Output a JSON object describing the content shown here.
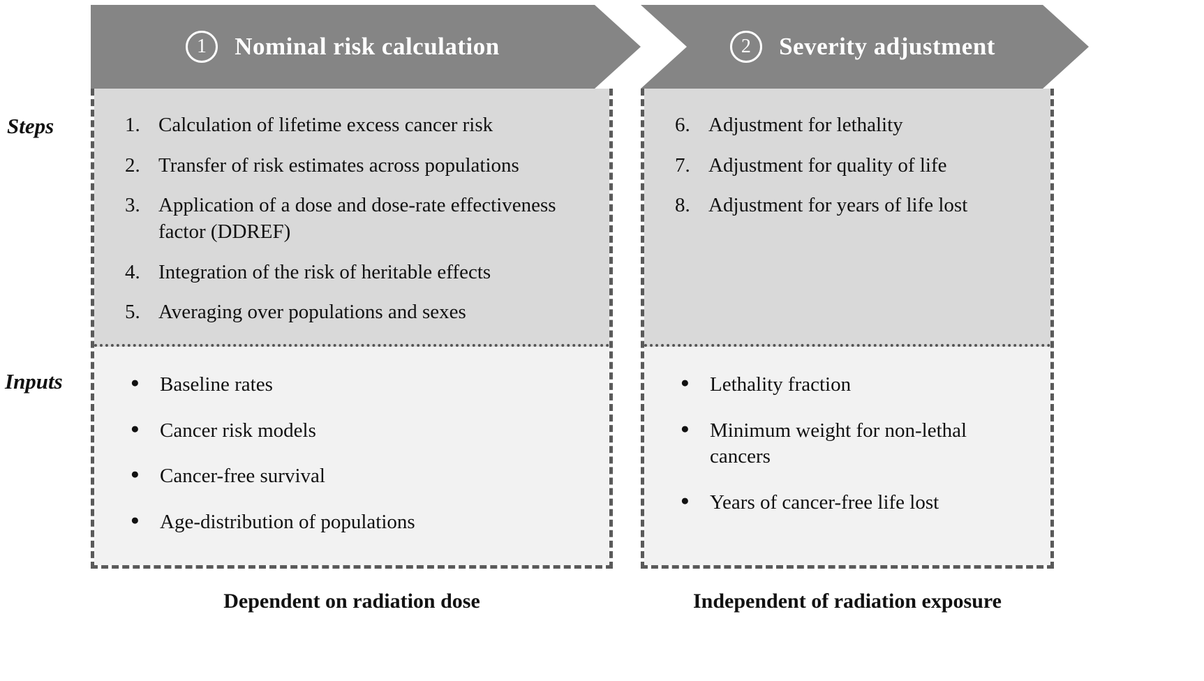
{
  "glyphs": {
    "bullet": "●"
  },
  "colors": {
    "arrow_fill": "#858585",
    "steps_bg": "#d9d9d9",
    "inputs_bg": "#f2f2f2",
    "border": "#5a5a5a"
  },
  "row_labels": {
    "steps": "Steps",
    "inputs": "Inputs"
  },
  "phases": [
    {
      "badge": "1",
      "title": "Nominal risk calculation",
      "steps": [
        {
          "num": "1.",
          "text": "Calculation of lifetime excess cancer risk"
        },
        {
          "num": "2.",
          "text": "Transfer of risk estimates across populations"
        },
        {
          "num": "3.",
          "text": "Application of a dose and dose-rate effectiveness factor (DDREF)"
        },
        {
          "num": "4.",
          "text": "Integration of the risk of heritable effects"
        },
        {
          "num": "5.",
          "text": "Averaging over populations and sexes"
        }
      ],
      "inputs": [
        "Baseline rates",
        "Cancer risk models",
        "Cancer-free survival",
        "Age-distribution of populations"
      ],
      "footer": "Dependent on radiation dose"
    },
    {
      "badge": "2",
      "title": "Severity adjustment",
      "steps": [
        {
          "num": "6.",
          "text": "Adjustment for lethality"
        },
        {
          "num": "7.",
          "text": "Adjustment for quality of life"
        },
        {
          "num": "8.",
          "text": "Adjustment for years of life lost"
        }
      ],
      "inputs": [
        "Lethality fraction",
        "Minimum weight for non-lethal cancers",
        "Years of cancer-free life lost"
      ],
      "footer": "Independent of radiation exposure"
    }
  ]
}
